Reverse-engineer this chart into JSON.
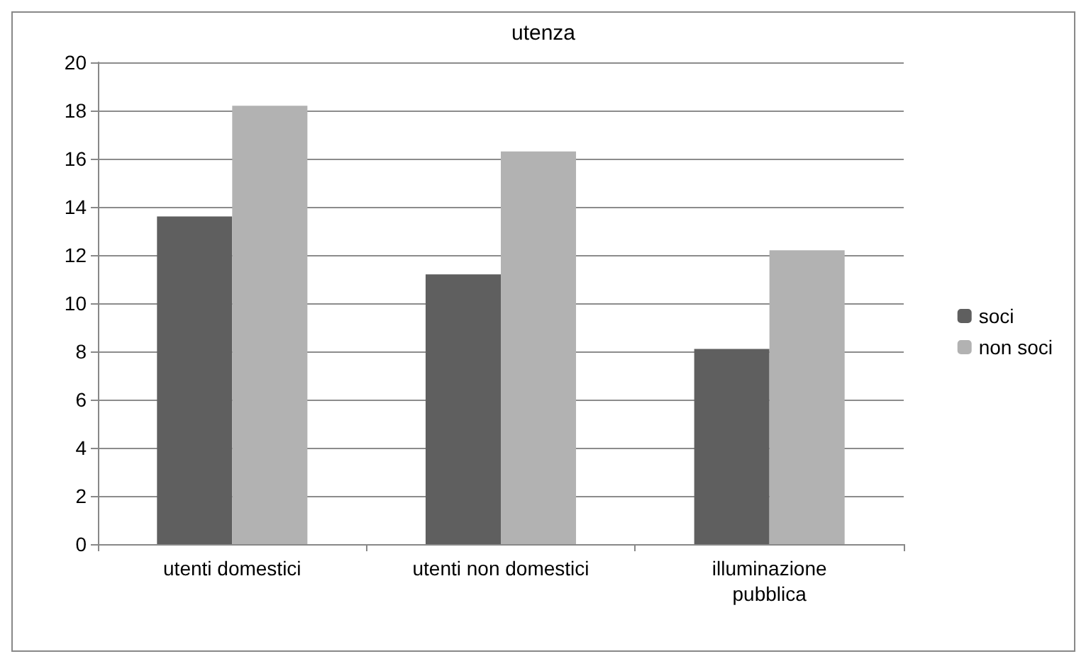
{
  "chart_data": {
    "type": "bar",
    "title": "utenza",
    "categories": [
      "utenti domestici",
      "utenti non domestici",
      "illuminazione\npubblica"
    ],
    "series": [
      {
        "name": "soci",
        "color": "#5f5f5f",
        "values": [
          13.6,
          11.2,
          8.1
        ]
      },
      {
        "name": "non soci",
        "color": "#b2b2b2",
        "values": [
          18.2,
          16.3,
          12.2
        ]
      }
    ],
    "ylim": [
      0,
      20
    ],
    "yticks": [
      0,
      2,
      4,
      6,
      8,
      10,
      12,
      14,
      16,
      18,
      20
    ],
    "grid": "y",
    "legend": "right"
  }
}
